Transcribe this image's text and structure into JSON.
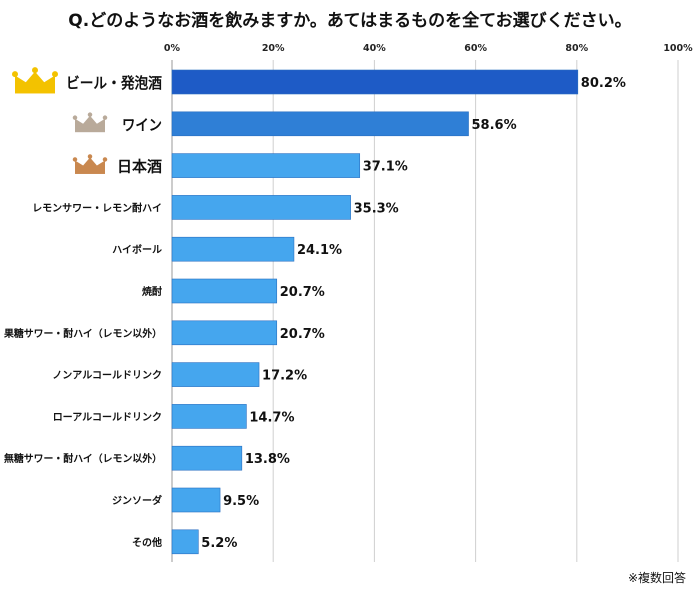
{
  "title": "Q.どのようなお酒を飲みますか。あてはまるものを全てお選びください。",
  "note": "※複数回答",
  "colors": {
    "rank1_bar": "#1e5bc6",
    "rank2_bar": "#2f7fd6",
    "other_bar": "#45a6ee",
    "grid": "#cfcfcf",
    "crown_gold": "#f3c200",
    "crown_silver": "#b9aa9a",
    "crown_bronze": "#c9884f"
  },
  "chart_data": {
    "type": "bar",
    "orientation": "horizontal",
    "title": "Q.どのようなお酒を飲みますか。あてはまるものを全てお選びください。",
    "categories": [
      "ビール・発泡酒",
      "ワイン",
      "日本酒",
      "レモンサワー・レモン酎ハイ",
      "ハイボール",
      "焼酎",
      "果糖サワー・酎ハイ（レモン以外）",
      "ノンアルコールドリンク",
      "ローアルコールドリンク",
      "無糖サワー・酎ハイ（レモン以外）",
      "ジンソーダ",
      "その他"
    ],
    "values": [
      80.2,
      58.6,
      37.1,
      35.3,
      24.1,
      20.7,
      20.7,
      17.2,
      14.7,
      13.8,
      9.5,
      5.2
    ],
    "value_labels": [
      "80.2%",
      "58.6%",
      "37.1%",
      "35.3%",
      "24.1%",
      "20.7%",
      "20.7%",
      "17.2%",
      "14.7%",
      "13.8%",
      "9.5%",
      "5.2%"
    ],
    "xlim": [
      0,
      100
    ],
    "xticks": [
      "0%",
      "20%",
      "40%",
      "60%",
      "80%",
      "100%"
    ],
    "grid": true,
    "crowns": [
      "gold",
      "silver",
      "bronze"
    ]
  }
}
